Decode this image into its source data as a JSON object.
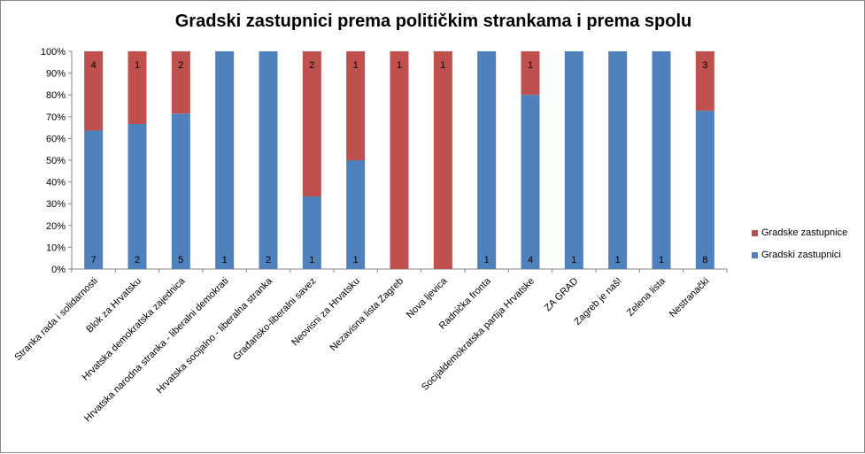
{
  "chart_data": {
    "type": "bar",
    "stacked": "percent",
    "title": "Gradski zastupnici prema političkim strankama i prema spolu",
    "categories": [
      "Stranka rada i solidarnosti",
      "Blok za Hrvatsku",
      "Hrvatska demokratska zajednica",
      "Hrvatska narodna stranka - liberalni demokrati",
      "Hrvatska socijalno - liberalna stranka",
      "Građansko-liberalni savez",
      "Neovisni za Hrvatsku",
      "Nezavisna lista Zagreb",
      "Nova ljevica",
      "Radnička fronta",
      "Socijaldemokratska partija Hrvatske",
      "ZA GRAD",
      "Zagreb je naš!",
      "Zelena lista",
      "Nestranački"
    ],
    "series": [
      {
        "name": "Gradski zastupnici",
        "color": "#4F81BD",
        "values": [
          7,
          2,
          5,
          1,
          2,
          1,
          1,
          0,
          0,
          1,
          4,
          1,
          1,
          1,
          8
        ]
      },
      {
        "name": "Gradske zastupnice",
        "color": "#C0504D",
        "values": [
          4,
          1,
          2,
          0,
          0,
          2,
          1,
          1,
          1,
          0,
          1,
          0,
          0,
          0,
          3
        ]
      }
    ],
    "yticks": [
      "0%",
      "10%",
      "20%",
      "30%",
      "40%",
      "50%",
      "60%",
      "70%",
      "80%",
      "90%",
      "100%"
    ],
    "ylim": [
      0,
      100
    ],
    "grid": false,
    "legend": "right"
  }
}
